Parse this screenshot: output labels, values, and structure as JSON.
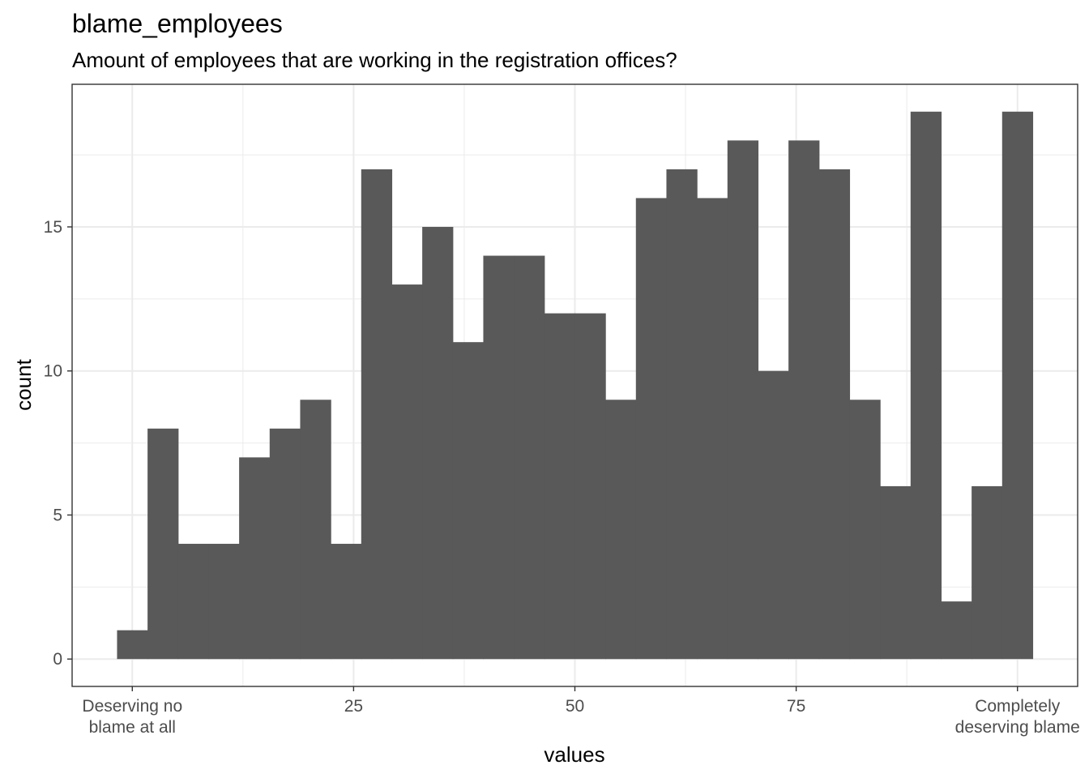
{
  "chart_data": {
    "type": "bar",
    "title": "blame_employees",
    "subtitle": "Amount of employees that are working in the registration offices?",
    "xlabel": "values",
    "ylabel": "count",
    "xlim": [
      -6.8,
      106.8
    ],
    "ylim": [
      -0.95,
      19.95
    ],
    "x_ticks": [
      {
        "value": 0,
        "lines": [
          "Deserving no",
          "blame at all"
        ]
      },
      {
        "value": 25,
        "lines": [
          "25"
        ]
      },
      {
        "value": 50,
        "lines": [
          "50"
        ]
      },
      {
        "value": 75,
        "lines": [
          "75"
        ]
      },
      {
        "value": 100,
        "lines": [
          "Completely",
          "deserving blame"
        ]
      }
    ],
    "y_ticks": [
      0,
      5,
      10,
      15
    ],
    "grid": true,
    "bin_width": 3.448,
    "bin_start": -1.724,
    "values": [
      1,
      8,
      4,
      4,
      7,
      8,
      9,
      4,
      17,
      13,
      15,
      11,
      14,
      14,
      12,
      12,
      9,
      16,
      17,
      16,
      18,
      10,
      18,
      17,
      9,
      6,
      19,
      2,
      6,
      19
    ],
    "bar_color": "#595959",
    "grid_color": "#ebebeb",
    "panel_border_color": "#333333"
  }
}
